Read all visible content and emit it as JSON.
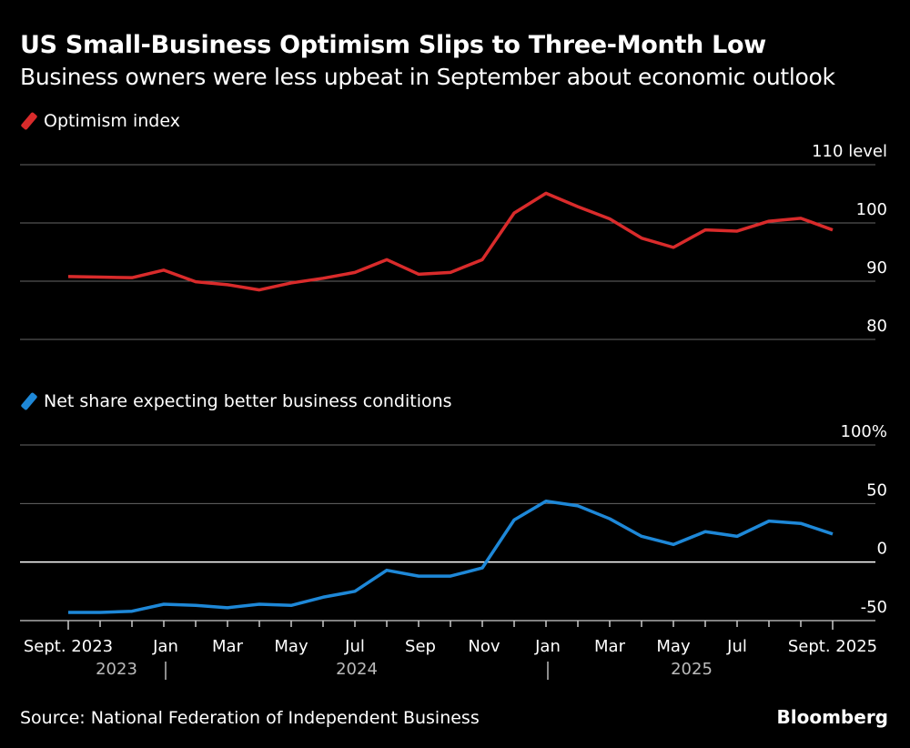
{
  "title": "US Small-Business Optimism Slips to Three-Month Low",
  "subtitle": "Business owners were less upbeat in September about economic outlook",
  "source": "Source: National Federation of Independent Business",
  "brand": "Bloomberg",
  "chart_data": [
    {
      "type": "line",
      "legend": "Optimism index",
      "color": "#d92b2b",
      "unit_label": "110 level",
      "yticks": [
        110,
        100,
        90,
        80
      ],
      "ylim": [
        80,
        110
      ],
      "grid": true,
      "x": [
        "2023-09",
        "2023-10",
        "2023-11",
        "2023-12",
        "2024-01",
        "2024-02",
        "2024-03",
        "2024-04",
        "2024-05",
        "2024-06",
        "2024-07",
        "2024-08",
        "2024-09",
        "2024-10",
        "2024-11",
        "2024-12",
        "2025-01",
        "2025-02",
        "2025-03",
        "2025-04",
        "2025-05",
        "2025-06",
        "2025-07",
        "2025-08",
        "2025-09"
      ],
      "values": [
        90.8,
        90.7,
        90.6,
        91.9,
        89.9,
        89.4,
        88.5,
        89.7,
        90.5,
        91.5,
        93.7,
        91.2,
        91.5,
        93.7,
        101.7,
        105.1,
        102.8,
        100.7,
        97.4,
        95.8,
        98.8,
        98.6,
        100.3,
        100.8,
        98.8
      ]
    },
    {
      "type": "line",
      "legend": "Net share expecting better business conditions",
      "color": "#1e88d8",
      "unit_label": "100%",
      "yticks": [
        100,
        50,
        0,
        -50
      ],
      "ylim": [
        -50,
        100
      ],
      "grid": true,
      "x": [
        "2023-09",
        "2023-10",
        "2023-11",
        "2023-12",
        "2024-01",
        "2024-02",
        "2024-03",
        "2024-04",
        "2024-05",
        "2024-06",
        "2024-07",
        "2024-08",
        "2024-09",
        "2024-10",
        "2024-11",
        "2024-12",
        "2025-01",
        "2025-02",
        "2025-03",
        "2025-04",
        "2025-05",
        "2025-06",
        "2025-07",
        "2025-08",
        "2025-09"
      ],
      "values": [
        -43,
        -43,
        -42,
        -36,
        -37,
        -39,
        -36,
        -37,
        -30,
        -25,
        -7,
        -12,
        -12,
        -5,
        36,
        52,
        48,
        37,
        22,
        15,
        26,
        22,
        35,
        33,
        24
      ],
      "xtick_labels": [
        "Sept. 2023",
        "Jan",
        "Mar",
        "May",
        "Jul",
        "Sep",
        "Nov",
        "Jan",
        "Mar",
        "May",
        "Jul",
        "Sept. 2025"
      ],
      "year_labels": [
        "2023",
        "2024",
        "2025"
      ]
    }
  ]
}
